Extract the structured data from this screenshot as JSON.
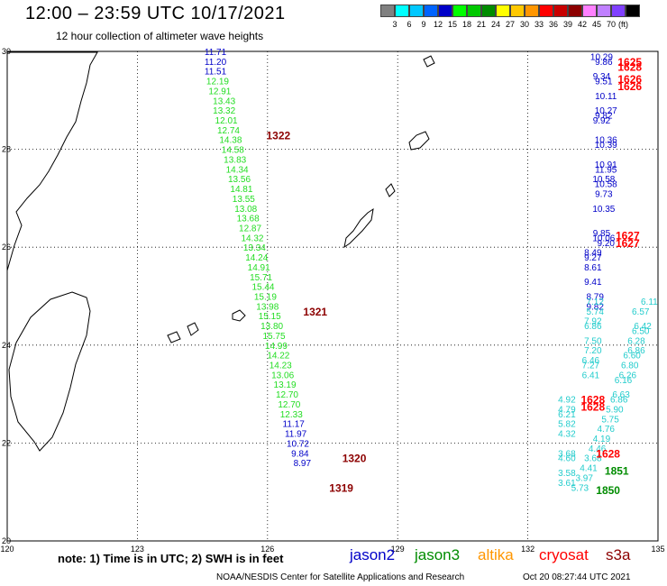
{
  "title": "12:00 – 23:59 UTC 10/17/2021",
  "subtitle": "12 hour collection of altimeter wave heights",
  "colorbar": {
    "colors": [
      "#808080",
      "#00ffff",
      "#00c8ff",
      "#0064ff",
      "#0000c8",
      "#00ff00",
      "#00c800",
      "#008c00",
      "#ffff00",
      "#ffc800",
      "#ff9600",
      "#ff0000",
      "#c80000",
      "#8c0000",
      "#ff80ff",
      "#c080ff",
      "#8040ff",
      "#000000"
    ],
    "labels": [
      "3",
      "6",
      "9",
      "12",
      "15",
      "18",
      "21",
      "24",
      "27",
      "30",
      "33",
      "36",
      "39",
      "42",
      "45",
      "70"
    ],
    "unit": "(ft)"
  },
  "axes": {
    "lon_labels": [
      "120",
      "123",
      "126",
      "129",
      "132",
      "135"
    ],
    "lat_labels": [
      "30",
      "28",
      "26",
      "24",
      "22",
      "20"
    ]
  },
  "note": "note:  1) Time is in UTC;  2) SWH is in feet",
  "satellites": [
    {
      "name": "jason2",
      "color": "#0000c8"
    },
    {
      "name": "jason3",
      "color": "#008c00"
    },
    {
      "name": "altika",
      "color": "#ff9600"
    },
    {
      "name": "cryosat",
      "color": "#ff0000"
    },
    {
      "name": "s3a",
      "color": "#8c0000"
    }
  ],
  "footer": "NOAA/NESDIS Center for Satellite Applications and Research",
  "footer_date": "Oct 20 08:27:44 UTC 2021",
  "tracks": [
    {
      "color": "#0000c8",
      "points": [
        [
          124.8,
          30.0,
          "11.71"
        ],
        [
          124.8,
          29.8,
          "11.20"
        ],
        [
          124.8,
          29.6,
          "11.51"
        ]
      ]
    },
    {
      "color": "#22dd22",
      "points": [
        [
          124.85,
          29.4,
          "12.19"
        ],
        [
          124.9,
          29.2,
          "12.91"
        ],
        [
          125.0,
          29.0,
          "13.43"
        ],
        [
          125.0,
          28.8,
          "13.32"
        ],
        [
          125.05,
          28.6,
          "12.01"
        ],
        [
          125.1,
          28.4,
          "12.74"
        ],
        [
          125.15,
          28.2,
          "14.38"
        ],
        [
          125.2,
          28.0,
          "14.58"
        ],
        [
          125.25,
          27.8,
          "13.83"
        ],
        [
          125.3,
          27.6,
          "14.34"
        ],
        [
          125.35,
          27.4,
          "13.56"
        ],
        [
          125.4,
          27.2,
          "14.81"
        ],
        [
          125.45,
          27.0,
          "13.55"
        ],
        [
          125.5,
          26.8,
          "13.08"
        ],
        [
          125.55,
          26.6,
          "13.68"
        ],
        [
          125.6,
          26.4,
          "12.87"
        ],
        [
          125.65,
          26.2,
          "14.32"
        ],
        [
          125.7,
          26.0,
          "13.34"
        ],
        [
          125.75,
          25.8,
          "14.24"
        ],
        [
          125.8,
          25.6,
          "14.91"
        ],
        [
          125.85,
          25.4,
          "15.71"
        ],
        [
          125.9,
          25.2,
          "15.44"
        ],
        [
          125.95,
          25.0,
          "15.19"
        ],
        [
          126.0,
          24.8,
          "13.98"
        ],
        [
          126.05,
          24.6,
          "15.15"
        ],
        [
          126.1,
          24.4,
          "13.80"
        ],
        [
          126.15,
          24.2,
          "15.75"
        ],
        [
          126.2,
          24.0,
          "14.99"
        ],
        [
          126.25,
          23.8,
          "14.22"
        ],
        [
          126.3,
          23.6,
          "14.23"
        ],
        [
          126.35,
          23.4,
          "13.06"
        ],
        [
          126.4,
          23.2,
          "13.19"
        ],
        [
          126.45,
          23.0,
          "12.70"
        ],
        [
          126.5,
          22.8,
          "12.70"
        ],
        [
          126.55,
          22.6,
          "12.33"
        ]
      ]
    },
    {
      "color": "#0000c8",
      "points": [
        [
          126.6,
          22.4,
          "11.17"
        ],
        [
          126.65,
          22.2,
          "11.97"
        ],
        [
          126.7,
          22.0,
          "10.72"
        ],
        [
          126.75,
          21.8,
          "9.84"
        ],
        [
          126.8,
          21.6,
          "8.97"
        ]
      ]
    },
    {
      "color": "#0000c8",
      "points": [
        [
          133.7,
          29.9,
          "10.29"
        ],
        [
          133.75,
          29.8,
          "9.86"
        ],
        [
          133.7,
          29.5,
          "9.34"
        ],
        [
          133.75,
          29.4,
          "9.51"
        ],
        [
          133.8,
          29.1,
          "10.11"
        ],
        [
          133.8,
          28.8,
          "10.27"
        ],
        [
          133.75,
          28.7,
          "9.82"
        ],
        [
          133.7,
          28.6,
          "9.92"
        ],
        [
          133.8,
          28.2,
          "10.36"
        ],
        [
          133.8,
          28.1,
          "10.39"
        ],
        [
          133.8,
          27.7,
          "10.91"
        ],
        [
          133.8,
          27.6,
          "11.95"
        ],
        [
          133.75,
          27.4,
          "10.58"
        ],
        [
          133.8,
          27.3,
          "10.58"
        ],
        [
          133.75,
          27.1,
          "9.73"
        ],
        [
          133.75,
          26.8,
          "10.35"
        ]
      ]
    },
    {
      "color": "#0000c8",
      "points": [
        [
          133.7,
          26.3,
          "9.85"
        ],
        [
          133.75,
          26.2,
          "10.06"
        ],
        [
          133.8,
          26.1,
          "9.20"
        ],
        [
          133.5,
          25.9,
          "8.49"
        ],
        [
          133.5,
          25.8,
          "9.27"
        ],
        [
          133.5,
          25.6,
          "8.61"
        ],
        [
          133.5,
          25.3,
          "9.41"
        ],
        [
          133.55,
          25.0,
          "8.79"
        ],
        [
          133.55,
          24.8,
          "9.82"
        ]
      ]
    },
    {
      "color": "#22cccc",
      "points": [
        [
          133.55,
          24.9,
          "7.12"
        ],
        [
          133.55,
          24.7,
          "5.74"
        ],
        [
          133.5,
          24.5,
          "7.92"
        ],
        [
          133.5,
          24.4,
          "6.86"
        ],
        [
          133.5,
          24.1,
          "7.50"
        ],
        [
          133.5,
          23.9,
          "7.20"
        ],
        [
          133.45,
          23.7,
          "6.46"
        ],
        [
          133.45,
          23.6,
          "7.27"
        ],
        [
          133.45,
          23.4,
          "6.41"
        ]
      ]
    },
    {
      "color": "#22cccc",
      "points": [
        [
          134.8,
          24.9,
          "6.11"
        ],
        [
          134.6,
          24.7,
          "6.57"
        ],
        [
          134.65,
          24.4,
          "6.42"
        ],
        [
          134.6,
          24.3,
          "6.50"
        ],
        [
          134.5,
          24.1,
          "6.28"
        ],
        [
          134.5,
          23.9,
          "6.86"
        ],
        [
          134.4,
          23.8,
          "6.60"
        ],
        [
          134.35,
          23.6,
          "6.80"
        ],
        [
          134.3,
          23.4,
          "6.26"
        ],
        [
          134.2,
          23.3,
          "6.16"
        ],
        [
          134.15,
          23.0,
          "6.63"
        ],
        [
          134.1,
          22.9,
          "6.86"
        ],
        [
          134.0,
          22.7,
          "5.90"
        ],
        [
          133.9,
          22.5,
          "5.75"
        ],
        [
          133.8,
          22.3,
          "4.76"
        ],
        [
          133.7,
          22.1,
          "4.19"
        ],
        [
          133.6,
          21.9,
          "4.46"
        ],
        [
          133.5,
          21.7,
          "3.68"
        ],
        [
          133.4,
          21.5,
          "4.41"
        ],
        [
          133.3,
          21.3,
          "3.97"
        ],
        [
          133.2,
          21.1,
          "5.73"
        ]
      ]
    },
    {
      "color": "#22cccc",
      "points": [
        [
          132.9,
          22.9,
          "4.92"
        ],
        [
          132.9,
          22.7,
          "4.79"
        ],
        [
          132.9,
          22.6,
          "6.21"
        ],
        [
          132.9,
          22.4,
          "5.82"
        ],
        [
          132.9,
          22.2,
          "4.32"
        ],
        [
          132.9,
          21.8,
          "3.68"
        ],
        [
          132.9,
          21.7,
          "4.60"
        ],
        [
          132.9,
          21.4,
          "3.58"
        ],
        [
          132.9,
          21.2,
          "3.61"
        ]
      ]
    }
  ],
  "passes": [
    {
      "lon": 126.25,
      "lat": 28.3,
      "label": "1322",
      "color": "#8c0000"
    },
    {
      "lon": 127.1,
      "lat": 24.7,
      "label": "1321",
      "color": "#8c0000"
    },
    {
      "lon": 128.0,
      "lat": 21.7,
      "label": "1320",
      "color": "#8c0000"
    },
    {
      "lon": 127.7,
      "lat": 21.1,
      "label": "1319",
      "color": "#8c0000"
    },
    {
      "lon": 134.35,
      "lat": 29.8,
      "label": "1625",
      "color": "#ff0000"
    },
    {
      "lon": 134.35,
      "lat": 29.7,
      "label": "1628",
      "color": "#ff0000"
    },
    {
      "lon": 134.35,
      "lat": 29.45,
      "label": "1626",
      "color": "#ff0000"
    },
    {
      "lon": 134.35,
      "lat": 29.3,
      "label": "1626",
      "color": "#ff0000"
    },
    {
      "lon": 134.3,
      "lat": 26.25,
      "label": "1627",
      "color": "#ff0000"
    },
    {
      "lon": 134.3,
      "lat": 26.1,
      "label": "1627",
      "color": "#ff0000"
    },
    {
      "lon": 133.5,
      "lat": 22.9,
      "label": "1628",
      "color": "#ff0000"
    },
    {
      "lon": 133.5,
      "lat": 22.75,
      "label": "1628",
      "color": "#ff0000"
    },
    {
      "lon": 133.85,
      "lat": 21.8,
      "label": "1628",
      "color": "#ff0000"
    },
    {
      "lon": 134.05,
      "lat": 21.45,
      "label": "1851",
      "color": "#008c00"
    },
    {
      "lon": 133.85,
      "lat": 21.05,
      "label": "1850",
      "color": "#008c00"
    }
  ]
}
